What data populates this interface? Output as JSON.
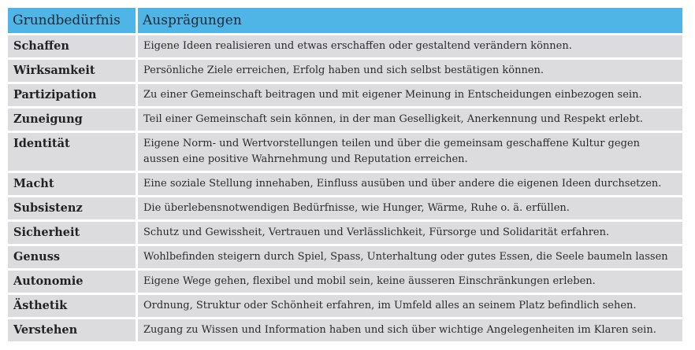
{
  "table": {
    "headers": [
      "Grundbedürfnis",
      "Ausprägungen"
    ],
    "rows": [
      {
        "need": "Schaffen",
        "description": "Eigene Ideen realisieren und etwas erschaffen oder gestaltend verändern können."
      },
      {
        "need": "Wirksamkeit",
        "description": "Persönliche Ziele erreichen, Erfolg haben und sich selbst bestätigen können."
      },
      {
        "need": "Partizipation",
        "description": "Zu einer Gemeinschaft beitragen und mit eigener Meinung in Entscheidungen einbezogen sein."
      },
      {
        "need": "Zuneigung",
        "description": "Teil einer Gemeinschaft sein können, in der man Geselligkeit, Anerkennung und Respekt erlebt."
      },
      {
        "need": "Identität",
        "description": "Eigene Norm- und Wertvorstellungen teilen und über die gemeinsam geschaffene Kultur gegen aussen eine positive Wahrnehmung und Reputation erreichen."
      },
      {
        "need": "Macht",
        "description": "Eine soziale Stellung innehaben, Einfluss ausüben und über andere die eigenen Ideen durchsetzen."
      },
      {
        "need": "Subsistenz",
        "description": "Die überlebensnotwendigen Bedürfnisse, wie Hunger, Wärme, Ruhe o. ä. erfüllen."
      },
      {
        "need": "Sicherheit",
        "description": "Schutz und Gewissheit, Vertrauen und Verlässlichkeit, Fürsorge und Solidarität erfahren."
      },
      {
        "need": "Genuss",
        "description": "Wohlbefinden steigern durch Spiel, Spass, Unterhaltung oder gutes Essen, die Seele baumeln lassen"
      },
      {
        "need": "Autonomie",
        "description": "Eigene Wege gehen, flexibel und mobil sein, keine äusseren Einschränkungen erleben."
      },
      {
        "need": "Ästhetik",
        "description": "Ordnung, Struktur oder Schönheit erfahren, im Umfeld alles an seinem Platz befindlich sehen."
      },
      {
        "need": "Verstehen",
        "description": "Zugang zu Wissen und Information haben und sich über wichtige Angelegenheiten im Klaren sein."
      }
    ]
  },
  "colors": {
    "header": "#4fb4e6",
    "cell": "#dcdcde"
  }
}
